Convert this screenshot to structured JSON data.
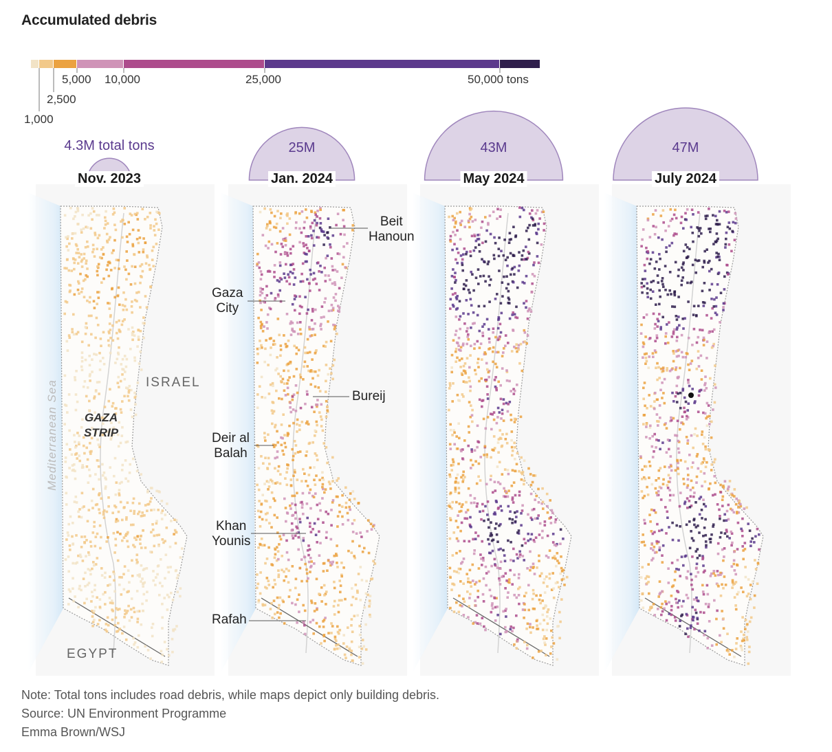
{
  "title": "Accumulated debris",
  "legend": {
    "colors": [
      "#f2e3c6",
      "#f2c98a",
      "#eba241",
      "#cf93b7",
      "#ad4c8c",
      "#5c3a8c",
      "#2f1f4c"
    ],
    "labels": [
      "1,000",
      "2,500",
      "5,000",
      "10,000",
      "25,000",
      "50,000 tons"
    ]
  },
  "bubble_color": "#ddd3e6",
  "bubble_stroke": "#9f86bc",
  "panels": [
    {
      "date": "Nov. 2023",
      "total": "4.3M total tons",
      "total_tons_millions": 4.3,
      "intensity": 0.25
    },
    {
      "date": "Jan. 2024",
      "total": "25M",
      "total_tons_millions": 25,
      "intensity": 0.6
    },
    {
      "date": "May 2024",
      "total": "43M",
      "total_tons_millions": 43,
      "intensity": 0.85
    },
    {
      "date": "July 2024",
      "total": "47M",
      "total_tons_millions": 47,
      "intensity": 0.95
    }
  ],
  "places": {
    "beit_hanoun": "Beit\nHanoun",
    "gaza_city": "Gaza\nCity",
    "bureij": "Bureij",
    "deir_al_balah": "Deir al\nBalah",
    "khan_younis": "Khan\nYounis",
    "rafah": "Rafah"
  },
  "regions": {
    "israel": "ISRAEL",
    "egypt": "EGYPT",
    "gaza_strip": "GAZA\nSTRIP",
    "sea": "Mediterranean Sea"
  },
  "footer": {
    "note": "Note: Total tons includes road debris, while maps depict only building debris.",
    "source": "Source: UN Environment Programme",
    "credit": "Emma Brown/WSJ"
  }
}
